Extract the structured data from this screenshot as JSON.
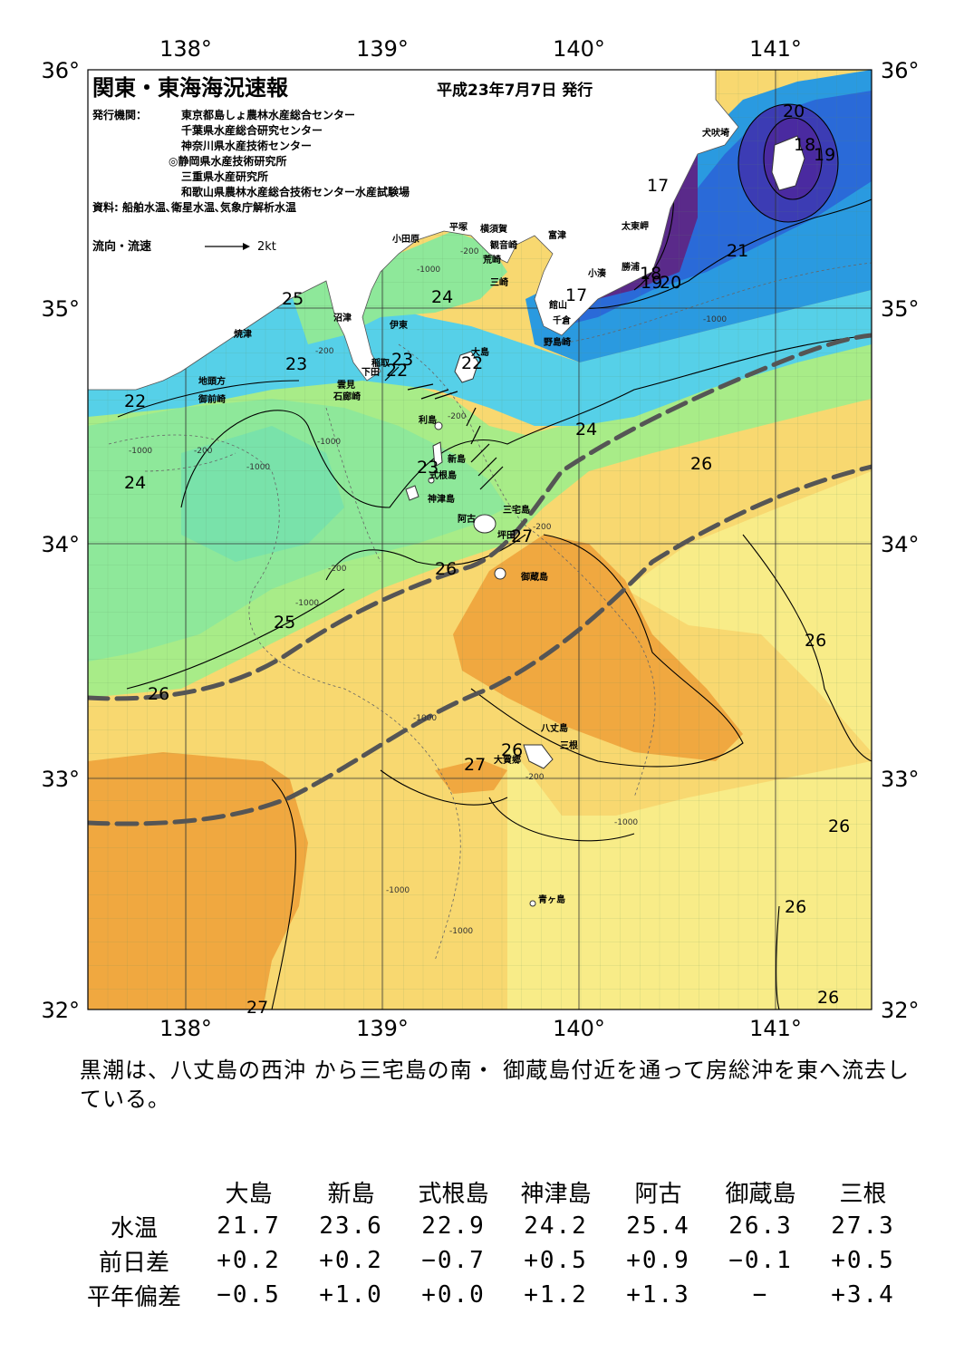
{
  "header": {
    "title": "関東・東海海況速報",
    "date": "平成23年7月7日 発行",
    "publisher_label": "発行機関：",
    "publishers": [
      "東京都島しょ農林水産総合センター",
      "千葉県水産総合研究センター",
      "神奈川県水産技術センター",
      "◎静岡県水産技術研究所",
      "三重県水産研究所",
      "和歌山県農林水産総合技術センター水産試験場"
    ],
    "sources": "資料: 船舶水温､衛星水温､気象庁解析水温",
    "flow_legend": "流向・流速",
    "flow_unit": "2kt"
  },
  "axes": {
    "lon_labels": [
      "138°",
      "139°",
      "140°",
      "141°"
    ],
    "lat_labels": [
      "36°",
      "35°",
      "34°",
      "33°",
      "32°"
    ]
  },
  "place_labels": [
    "犬吠埼",
    "太東岬",
    "勝浦",
    "小湊",
    "館山",
    "千倉",
    "野島崎",
    "富津",
    "観音崎",
    "横須賀",
    "平塚",
    "小田原",
    "荒崎",
    "三崎",
    "大島",
    "沼津",
    "伊東",
    "焼津",
    "地頭方",
    "御前崎",
    "雲見",
    "石廊崎",
    "稲取",
    "下田",
    "利島",
    "新島",
    "式根島",
    "神津島",
    "三宅島",
    "阿古",
    "坪田",
    "御蔵島",
    "八丈島",
    "三根",
    "大賀郷",
    "青ヶ島"
  ],
  "sst_labels": [
    "20",
    "18",
    "19",
    "17",
    "21",
    "18",
    "19",
    "20",
    "17",
    "25",
    "24",
    "23",
    "23",
    "22",
    "22",
    "22",
    "24",
    "24",
    "26",
    "23",
    "27",
    "26",
    "25",
    "26",
    "26",
    "27",
    "26",
    "26",
    "26",
    "27",
    "26"
  ],
  "depth_labels": [
    "-200",
    "-1000"
  ],
  "summary": "黒潮は、八丈島の西沖 から三宅島の南・ 御蔵島付近を通って房総沖を東へ流去している。",
  "table": {
    "row_labels": [
      "水温",
      "前日差",
      "平年偏差"
    ],
    "columns": [
      "大島",
      "新島",
      "式根島",
      "神津島",
      "阿古",
      "御蔵島",
      "三根"
    ],
    "water_temp": [
      "21.7",
      "23.6",
      "22.9",
      "24.2",
      "25.4",
      "26.3",
      "27.3"
    ],
    "diff_prev_day": [
      "+0.2",
      "+0.2",
      "−0.7",
      "+0.5",
      "+0.9",
      "−0.1",
      "+0.5"
    ],
    "anomaly": [
      "−0.5",
      "+1.0",
      "+0.0",
      "+1.2",
      "+1.3",
      "−",
      "+3.4"
    ]
  },
  "colors": {
    "sst_17": "#5a2a8a",
    "sst_19": "#3c3cb4",
    "sst_20": "#2a6ad8",
    "sst_21": "#2a9ae0",
    "sst_22": "#48c8ee",
    "sst_23": "#6ee0e0",
    "sst_24": "#8ee89a",
    "sst_25": "#b8f080",
    "sst_26_low": "#f8f088",
    "sst_26": "#f8d870",
    "sst_27": "#f0b048",
    "sst_27_high": "#f09a30",
    "land": "#ffffff",
    "kuroshio_axis": "#555555"
  }
}
